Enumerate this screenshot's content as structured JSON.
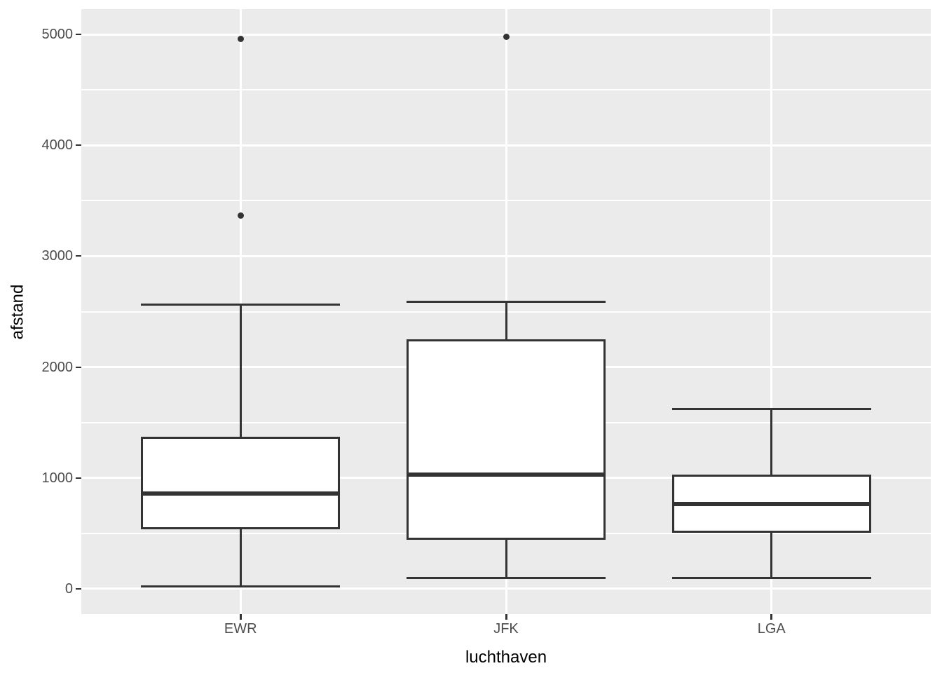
{
  "chart_data": {
    "type": "boxplot",
    "title": "",
    "x_axis": {
      "title": "luchthaven",
      "categories": [
        "EWR",
        "JFK",
        "LGA"
      ]
    },
    "y_axis": {
      "title": "afstand",
      "tick_labels": [
        "0",
        "1000",
        "2000",
        "3000",
        "4000",
        "5000"
      ],
      "tick_values": [
        0,
        1000,
        2000,
        3000,
        4000,
        5000
      ],
      "minor_tick_values": [
        500,
        1500,
        2500,
        3500,
        4500
      ],
      "range": [
        -231,
        5231
      ]
    },
    "series": [
      {
        "category": "EWR",
        "lower_whisker": 17,
        "q1": 533,
        "median": 860,
        "q3": 1372,
        "upper_whisker": 2565,
        "outliers": [
          3370,
          4963
        ]
      },
      {
        "category": "JFK",
        "lower_whisker": 94,
        "q1": 438,
        "median": 1028,
        "q3": 2248,
        "upper_whisker": 2586,
        "outliers": [
          4983
        ]
      },
      {
        "category": "LGA",
        "lower_whisker": 96,
        "q1": 502,
        "median": 760,
        "q3": 1030,
        "upper_whisker": 1620,
        "outliers": []
      }
    ],
    "legend": "none",
    "grid": true,
    "style": {
      "panel_background": "#EBEBEB",
      "gridline_color": "#FFFFFF",
      "box_fill": "#FFFFFF",
      "line_color": "#333333",
      "tick_label_color": "#4D4D4D",
      "axis_title_color": "#000000"
    }
  }
}
